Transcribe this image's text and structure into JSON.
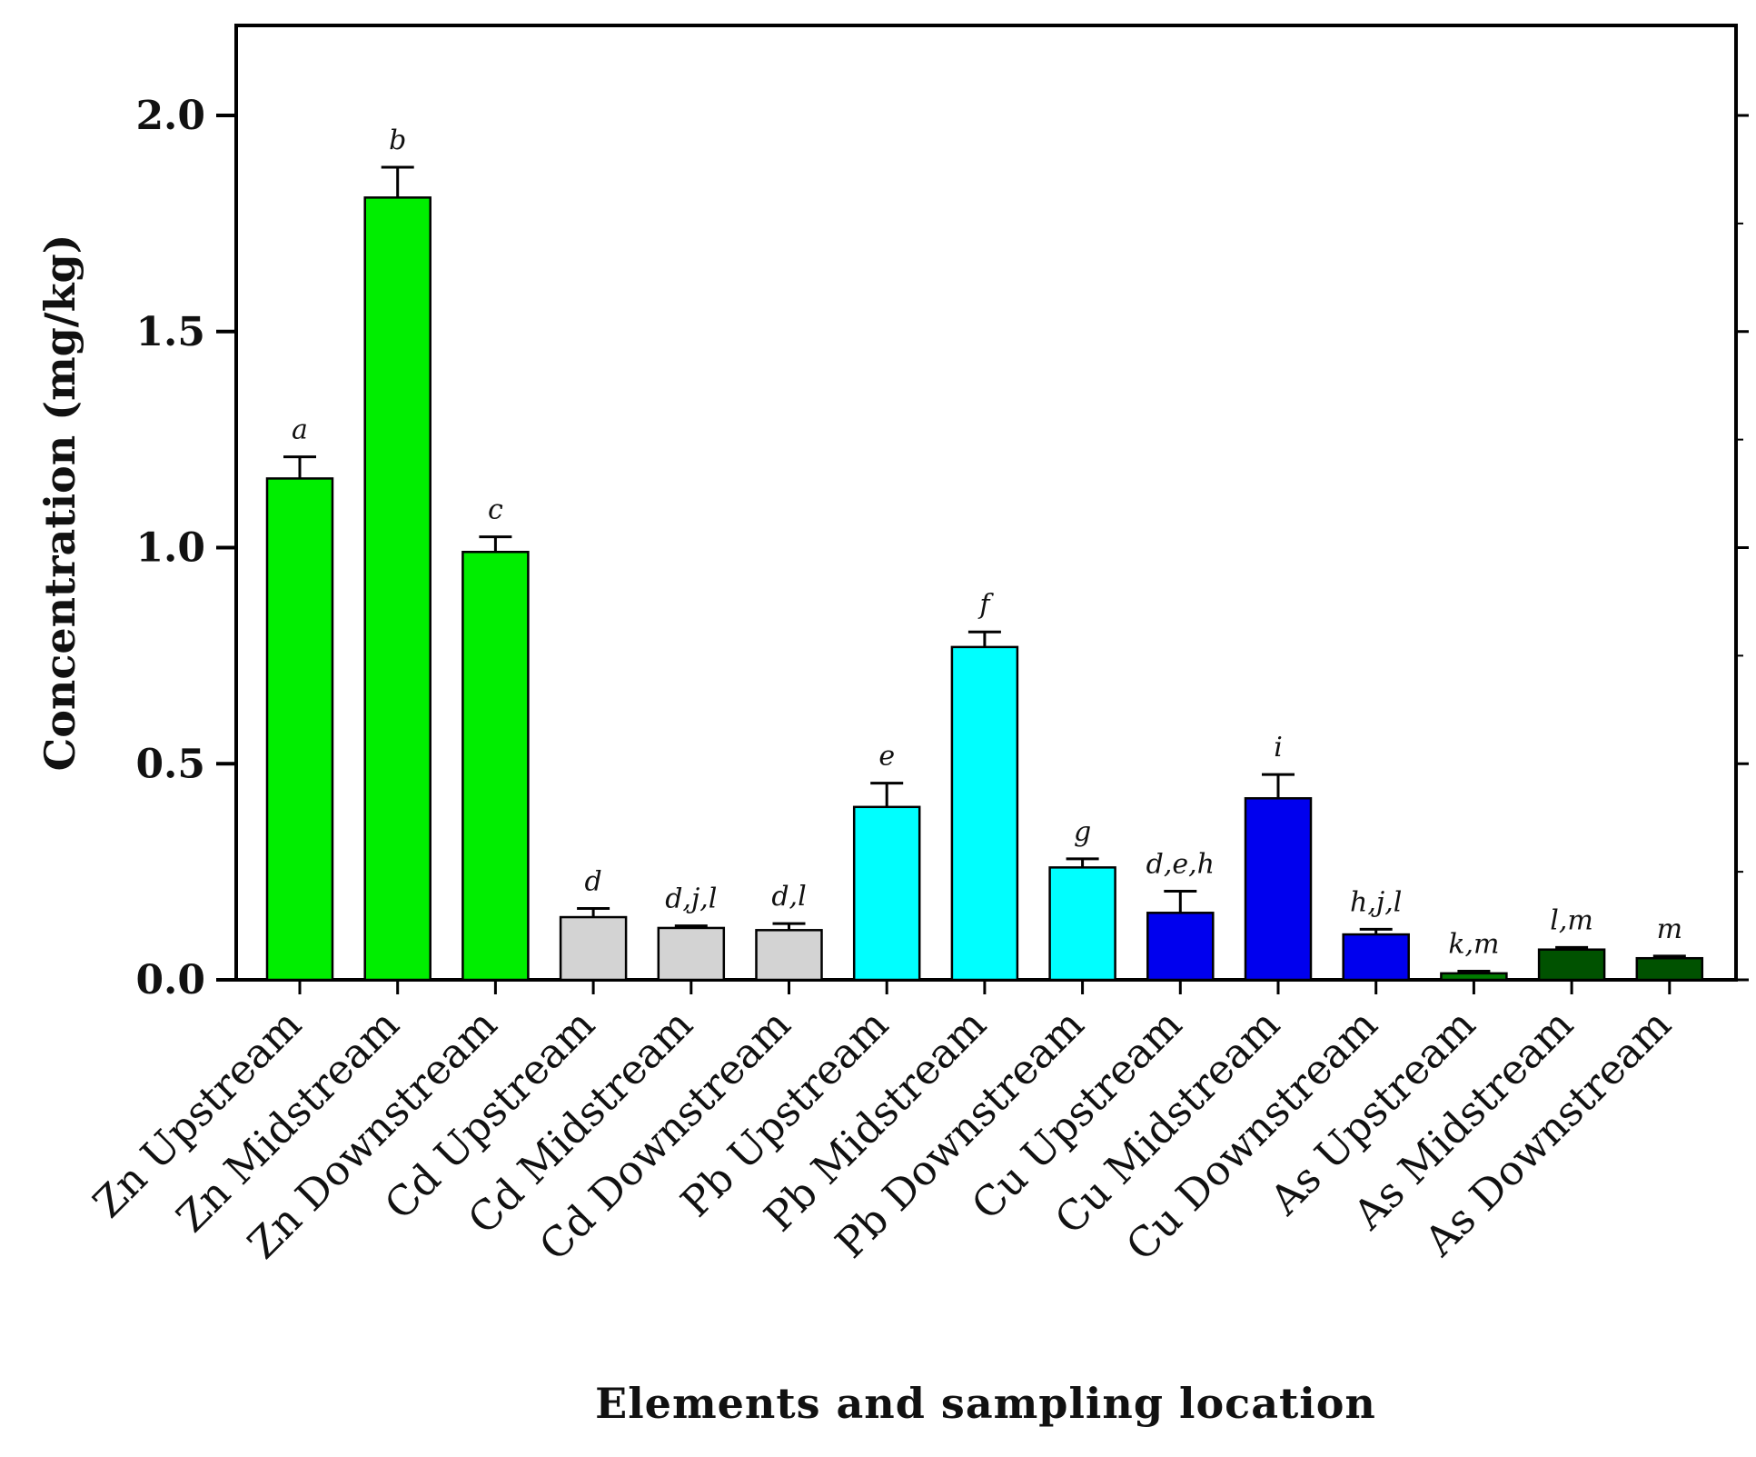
{
  "chart_data": {
    "type": "bar",
    "title": "",
    "xlabel": "Elements and sampling location",
    "ylabel": "Concentration (mg/kg)",
    "ylim": [
      0,
      2.2
    ],
    "yticks": [
      0.0,
      0.5,
      1.0,
      1.5,
      2.0
    ],
    "ytick_labels": [
      "0.0",
      "0.5",
      "1.0",
      "1.5",
      "2.0"
    ],
    "grid": false,
    "categories": [
      "Zn Upstream",
      "Zn Midstream",
      "Zn Downstream",
      "Cd Upstream",
      "Cd Midstream",
      "Cd Downstream",
      "Pb Upstream",
      "Pb Midstream",
      "Pb Downstream",
      "Cu Upstream",
      "Cu Midstream",
      "Cu Downstream",
      "As Upstream",
      "As Midstream",
      "As Downstream"
    ],
    "values": [
      1.16,
      1.81,
      0.99,
      0.145,
      0.12,
      0.115,
      0.4,
      0.77,
      0.26,
      0.155,
      0.42,
      0.105,
      0.015,
      0.07,
      0.05
    ],
    "errors": [
      0.05,
      0.07,
      0.035,
      0.02,
      0.005,
      0.015,
      0.055,
      0.035,
      0.02,
      0.05,
      0.055,
      0.012,
      0.005,
      0.005,
      0.005
    ],
    "significance_labels": [
      "a",
      "b",
      "c",
      "d",
      "d,j,l",
      "d,l",
      "e",
      "f",
      "g",
      "d,e,h",
      "i",
      "h,j,l",
      "k,m",
      "l,m",
      "m"
    ],
    "colors": [
      "#00ee00",
      "#00ee00",
      "#00ee00",
      "#d3d3d3",
      "#d3d3d3",
      "#d3d3d3",
      "#00ffff",
      "#00ffff",
      "#00ffff",
      "#0000ee",
      "#0000ee",
      "#0000ee",
      "#007a00",
      "#005200",
      "#005200"
    ]
  }
}
